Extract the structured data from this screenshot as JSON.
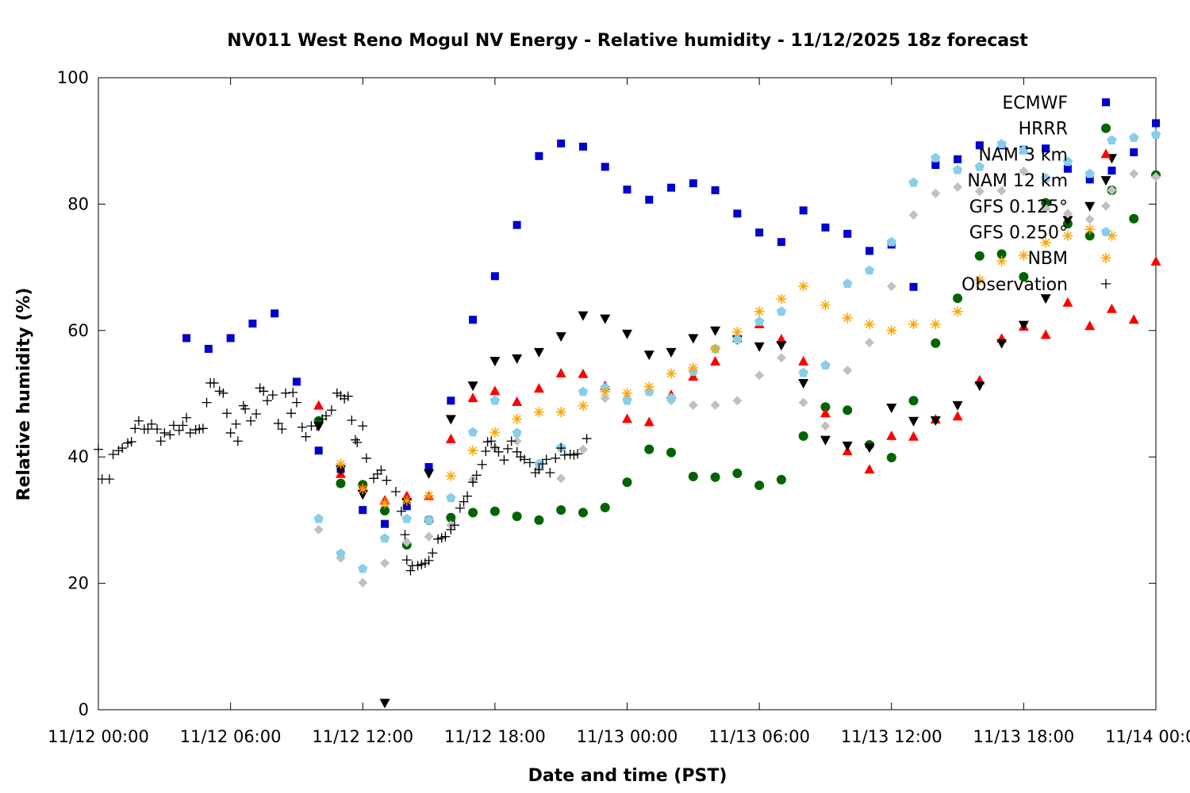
{
  "chart_data": {
    "type": "scatter",
    "title": "NV011 West Reno Mogul NV Energy - Relative humidity - 11/12/2025 18z forecast",
    "xlabel": "Date and time (PST)",
    "ylabel": "Relative humidity (%)",
    "xlim": [
      "2025-11-12 00:00",
      "2025-11-14 00:00"
    ],
    "ylim": [
      0,
      100
    ],
    "x_ticks": [
      "11/12 00:00",
      "11/12 06:00",
      "11/12 12:00",
      "11/12 18:00",
      "11/13 00:00",
      "11/13 06:00",
      "11/13 12:00",
      "11/13 18:00",
      "11/14 00:00"
    ],
    "y_ticks": [
      "0",
      "20",
      "40",
      "60",
      "80",
      "100"
    ],
    "grid": false,
    "legend_position": "top-right",
    "series": [
      {
        "name": "ECMWF",
        "marker": "square",
        "color": "#0000cc",
        "start": "2025-11-12 04:00",
        "step_hours": 1,
        "values": [
          58.8,
          57.1,
          58.8,
          61.1,
          62.7,
          51.9,
          41.0,
          38.1,
          31.6,
          29.4,
          32.2,
          38.4,
          48.9,
          61.7,
          68.6,
          76.7,
          87.6,
          89.6,
          89.1,
          85.9,
          82.3,
          80.7,
          82.6,
          83.3,
          82.2,
          78.5,
          75.5,
          74.0,
          79.0,
          76.3,
          75.3,
          72.6,
          73.6,
          66.9,
          86.2,
          87.1,
          89.3,
          89.3,
          88.6,
          88.8,
          85.6,
          83.9,
          85.3,
          88.2,
          92.8
        ]
      },
      {
        "name": "HRRR",
        "marker": "circle",
        "color": "#006400",
        "start": "2025-11-12 10:00",
        "step_hours": 1,
        "values": [
          45.7,
          35.8,
          35.6,
          31.5,
          26.1,
          30.0,
          30.4,
          31.2,
          31.4,
          30.6,
          30.0,
          31.6,
          31.2,
          32.0,
          36.0,
          41.2,
          40.7,
          36.9,
          36.8,
          37.4,
          35.5,
          36.4,
          43.3,
          47.9,
          47.4,
          41.9,
          39.9,
          48.9,
          58.0,
          65.1,
          71.8,
          72.1,
          68.5,
          80.2,
          76.9,
          75.0,
          82.2,
          77.7,
          84.6
        ]
      },
      {
        "name": "NAM 3 km",
        "marker": "triangle-up",
        "color": "#ff0000",
        "start": "2025-11-12 10:00",
        "step_hours": 1,
        "values": [
          48.1,
          37.3,
          35.1,
          33.1,
          33.8,
          33.8,
          42.8,
          49.3,
          50.4,
          48.7,
          50.8,
          53.2,
          53.1,
          51.2,
          46.0,
          45.5,
          49.8,
          52.7,
          55.1,
          58.8,
          61.0,
          58.6,
          55.1,
          46.9,
          40.9,
          38.0,
          43.3,
          43.2,
          45.9,
          46.4,
          52.1,
          58.7,
          60.6,
          59.3,
          64.4,
          60.7,
          63.4,
          61.7,
          70.9
        ]
      },
      {
        "name": "NAM 12 km",
        "marker": "triangle-down",
        "color": "#000000",
        "start": "2025-11-12 10:00",
        "step_hours": 1,
        "values": [
          44.9,
          38.0,
          34.1,
          1.1,
          32.9,
          37.4,
          46.0,
          51.3,
          55.2,
          55.6,
          56.6,
          59.1,
          62.4,
          61.9,
          59.5,
          56.2,
          56.6,
          58.8,
          60.0,
          58.6,
          57.5,
          57.7,
          51.7,
          42.7,
          41.8,
          41.5,
          47.8,
          45.7,
          45.8,
          48.2,
          51.3,
          58.0,
          60.9,
          65.1,
          77.5,
          79.7,
          87.3
        ]
      },
      {
        "name": "GFS 0.125°",
        "marker": "diamond",
        "color": "#c0c0c0",
        "start": "2025-11-12 10:00",
        "step_hours": 1,
        "values": [
          28.5,
          24.0,
          20.1,
          23.2,
          26.5,
          27.4,
          29.2,
          36.4,
          41.4,
          42.5,
          38.3,
          36.6,
          41.2,
          49.3,
          49.2,
          50.3,
          48.9,
          48.2,
          48.2,
          48.9,
          52.9,
          55.7,
          48.6,
          44.9,
          53.7,
          58.1,
          67.0,
          78.3,
          81.7,
          82.7,
          82.0,
          82.1,
          85.2,
          79.3,
          78.5,
          77.6,
          82.2,
          84.8,
          84.3
        ]
      },
      {
        "name": "GFS 0.250°",
        "marker": "pentagon",
        "color": "#87ceeb",
        "start": "2025-11-12 10:00",
        "step_hours": 1,
        "values": [
          30.2,
          24.7,
          22.3,
          27.1,
          30.2,
          30.0,
          33.5,
          43.9,
          48.9,
          43.8,
          38.9,
          41.5,
          50.3,
          50.9,
          48.9,
          50.3,
          49.3,
          53.5,
          57.1,
          58.6,
          61.4,
          63.0,
          53.3,
          54.5,
          67.4,
          69.5,
          74.0,
          83.4,
          87.3,
          85.4,
          85.9,
          89.5,
          88.5,
          84.1,
          86.7,
          84.8,
          90.1,
          90.5,
          91.0
        ]
      },
      {
        "name": "NBM",
        "marker": "star",
        "color": "#ffa500",
        "start": "2025-11-12 11:00",
        "step_hours": 1,
        "values": [
          38.9,
          34.9,
          32.7,
          33.1,
          33.9,
          37.0,
          41.0,
          43.9,
          46.0,
          47.1,
          47.1,
          48.1,
          50.3,
          50.1,
          51.1,
          53.2,
          54.1,
          57.1,
          59.8,
          63.0,
          65.0,
          67.0,
          64.0,
          62.0,
          61.0,
          60.0,
          61.0,
          61.0,
          63.0,
          68.0,
          71.0,
          71.9,
          73.9,
          75.0,
          76.0,
          75.0
        ]
      },
      {
        "name": "Observation",
        "marker": "plus",
        "color": "#000000",
        "points": [
          [
            "2025-11-12 00:00",
            41.2
          ],
          [
            "2025-11-12 00:10",
            36.5
          ],
          [
            "2025-11-12 00:30",
            36.5
          ],
          [
            "2025-11-12 00:40",
            40.4
          ],
          [
            "2025-11-12 00:55",
            41.0
          ],
          [
            "2025-11-12 01:05",
            41.4
          ],
          [
            "2025-11-12 01:20",
            42.2
          ],
          [
            "2025-11-12 01:30",
            42.4
          ],
          [
            "2025-11-12 01:40",
            44.5
          ],
          [
            "2025-11-12 01:50",
            45.7
          ],
          [
            "2025-11-12 02:05",
            44.4
          ],
          [
            "2025-11-12 02:15",
            44.4
          ],
          [
            "2025-11-12 02:25",
            45.2
          ],
          [
            "2025-11-12 02:40",
            44.4
          ],
          [
            "2025-11-12 02:50",
            42.5
          ],
          [
            "2025-11-12 03:00",
            43.8
          ],
          [
            "2025-11-12 03:15",
            43.5
          ],
          [
            "2025-11-12 03:25",
            45.0
          ],
          [
            "2025-11-12 03:40",
            44.2
          ],
          [
            "2025-11-12 03:50",
            45.0
          ],
          [
            "2025-11-12 04:00",
            46.2
          ],
          [
            "2025-11-12 04:10",
            43.8
          ],
          [
            "2025-11-12 04:25",
            44.3
          ],
          [
            "2025-11-12 04:35",
            44.4
          ],
          [
            "2025-11-12 04:45",
            44.5
          ],
          [
            "2025-11-12 04:55",
            48.6
          ],
          [
            "2025-11-12 05:05",
            51.7
          ],
          [
            "2025-11-12 05:15",
            51.7
          ],
          [
            "2025-11-12 05:30",
            50.4
          ],
          [
            "2025-11-12 05:40",
            50.1
          ],
          [
            "2025-11-12 05:50",
            46.9
          ],
          [
            "2025-11-12 06:00",
            43.8
          ],
          [
            "2025-11-12 06:15",
            45.2
          ],
          [
            "2025-11-12 06:20",
            42.5
          ],
          [
            "2025-11-12 06:35",
            48.1
          ],
          [
            "2025-11-12 06:40",
            47.6
          ],
          [
            "2025-11-12 06:55",
            45.7
          ],
          [
            "2025-11-12 07:10",
            46.8
          ],
          [
            "2025-11-12 07:20",
            50.9
          ],
          [
            "2025-11-12 07:30",
            50.4
          ],
          [
            "2025-11-12 07:40",
            48.9
          ],
          [
            "2025-11-12 07:55",
            49.8
          ],
          [
            "2025-11-12 08:10",
            45.3
          ],
          [
            "2025-11-12 08:20",
            44.4
          ],
          [
            "2025-11-12 08:30",
            50.1
          ],
          [
            "2025-11-12 08:45",
            46.9
          ],
          [
            "2025-11-12 08:50",
            50.2
          ],
          [
            "2025-11-12 09:00",
            48.6
          ],
          [
            "2025-11-12 09:15",
            44.7
          ],
          [
            "2025-11-12 09:25",
            43.2
          ],
          [
            "2025-11-12 09:40",
            44.9
          ],
          [
            "2025-11-12 09:55",
            44.9
          ],
          [
            "2025-11-12 10:10",
            46.0
          ],
          [
            "2025-11-12 10:20",
            46.5
          ],
          [
            "2025-11-12 10:35",
            47.4
          ],
          [
            "2025-11-12 10:50",
            50.1
          ],
          [
            "2025-11-12 11:00",
            49.7
          ],
          [
            "2025-11-12 11:10",
            49.2
          ],
          [
            "2025-11-12 11:20",
            49.6
          ],
          [
            "2025-11-12 11:30",
            45.8
          ],
          [
            "2025-11-12 11:40",
            42.7
          ],
          [
            "2025-11-12 11:45",
            42.3
          ],
          [
            "2025-11-12 12:00",
            44.9
          ],
          [
            "2025-11-12 12:10",
            39.8
          ],
          [
            "2025-11-12 12:30",
            36.6
          ],
          [
            "2025-11-12 12:40",
            37.3
          ],
          [
            "2025-11-12 12:50",
            37.9
          ],
          [
            "2025-11-12 13:05",
            36.3
          ],
          [
            "2025-11-12 13:30",
            34.5
          ],
          [
            "2025-11-12 13:45",
            31.4
          ],
          [
            "2025-11-12 13:55",
            27.7
          ],
          [
            "2025-11-12 14:00",
            23.7
          ],
          [
            "2025-11-12 14:10",
            22.0
          ],
          [
            "2025-11-12 14:15",
            22.8
          ],
          [
            "2025-11-12 14:30",
            22.8
          ],
          [
            "2025-11-12 14:40",
            23.0
          ],
          [
            "2025-11-12 14:50",
            23.2
          ],
          [
            "2025-11-12 15:00",
            23.6
          ],
          [
            "2025-11-12 15:10",
            24.8
          ],
          [
            "2025-11-12 15:25",
            27.0
          ],
          [
            "2025-11-12 15:35",
            27.2
          ],
          [
            "2025-11-12 15:45",
            27.4
          ],
          [
            "2025-11-12 16:00",
            28.5
          ],
          [
            "2025-11-12 16:10",
            29.2
          ],
          [
            "2025-11-12 16:25",
            31.9
          ],
          [
            "2025-11-12 16:35",
            32.9
          ],
          [
            "2025-11-12 16:45",
            33.8
          ],
          [
            "2025-11-12 17:00",
            36.0
          ],
          [
            "2025-11-12 17:10",
            37.1
          ],
          [
            "2025-11-12 17:25",
            38.8
          ],
          [
            "2025-11-12 17:35",
            40.9
          ],
          [
            "2025-11-12 17:40",
            42.4
          ],
          [
            "2025-11-12 17:50",
            42.5
          ],
          [
            "2025-11-12 18:00",
            41.5
          ],
          [
            "2025-11-12 18:10",
            40.8
          ],
          [
            "2025-11-12 18:25",
            39.5
          ],
          [
            "2025-11-12 18:35",
            41.3
          ],
          [
            "2025-11-12 18:45",
            42.5
          ],
          [
            "2025-11-12 19:00",
            40.8
          ],
          [
            "2025-11-12 19:10",
            40.0
          ],
          [
            "2025-11-12 19:20",
            39.6
          ],
          [
            "2025-11-12 19:35",
            39.1
          ],
          [
            "2025-11-12 19:50",
            37.5
          ],
          [
            "2025-11-12 20:00",
            38.0
          ],
          [
            "2025-11-12 20:10",
            38.9
          ],
          [
            "2025-11-12 20:20",
            39.6
          ],
          [
            "2025-11-12 20:30",
            37.5
          ],
          [
            "2025-11-12 20:45",
            39.8
          ],
          [
            "2025-11-12 21:00",
            41.4
          ],
          [
            "2025-11-12 21:10",
            40.3
          ],
          [
            "2025-11-12 21:25",
            40.4
          ],
          [
            "2025-11-12 21:35",
            40.3
          ],
          [
            "2025-11-12 21:45",
            40.5
          ],
          [
            "2025-11-12 22:10",
            42.9
          ]
        ]
      }
    ]
  }
}
